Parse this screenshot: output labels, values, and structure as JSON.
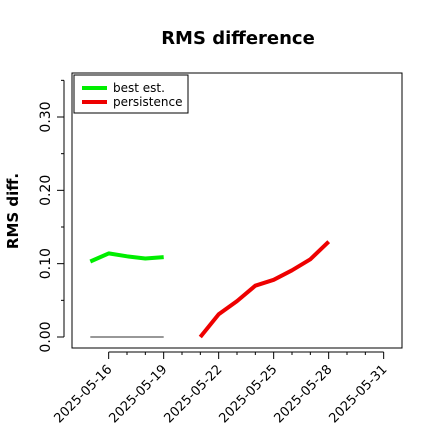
{
  "chart_data": {
    "type": "line",
    "title": "RMS difference",
    "xlabel": "",
    "ylabel": "RMS diff.",
    "xlim": [
      "2025-05-14",
      "2025-06-01"
    ],
    "ylim": [
      -0.015,
      0.36
    ],
    "xticks": [
      "2025-05-16",
      "2025-05-19",
      "2025-05-22",
      "2025-05-25",
      "2025-05-28",
      "2025-05-31"
    ],
    "xtick_labels": [
      "2025-05-16",
      "2025-05-19",
      "2025-05-22",
      "2025-05-25",
      "2025-05-28",
      "2025-05-31"
    ],
    "yticks_major": [
      0.0,
      0.1,
      0.2,
      0.3
    ],
    "ytick_labels": [
      "0.00",
      "0.10",
      "0.20",
      "0.30"
    ],
    "yticks_minor": [
      0.05,
      0.15,
      0.25,
      0.35
    ],
    "legend_position": "top-left",
    "grid": false,
    "series": [
      {
        "name": "best est.",
        "color": "#00ee00",
        "x": [
          "2025-05-15",
          "2025-05-16",
          "2025-05-17",
          "2025-05-18",
          "2025-05-19"
        ],
        "y": [
          0.103,
          0.114,
          0.11,
          0.107,
          0.109
        ]
      },
      {
        "name": "persistence",
        "color": "#ee0000",
        "x": [
          "2025-05-21",
          "2025-05-22",
          "2025-05-23",
          "2025-05-24",
          "2025-05-25",
          "2025-05-26",
          "2025-05-27",
          "2025-05-28"
        ],
        "y": [
          0.0,
          0.031,
          0.049,
          0.07,
          0.078,
          0.091,
          0.106,
          0.13
        ]
      },
      {
        "name": "",
        "color": "#777777",
        "x": [
          "2025-05-15",
          "2025-05-19"
        ],
        "y": [
          0.0,
          0.0
        ]
      }
    ]
  }
}
